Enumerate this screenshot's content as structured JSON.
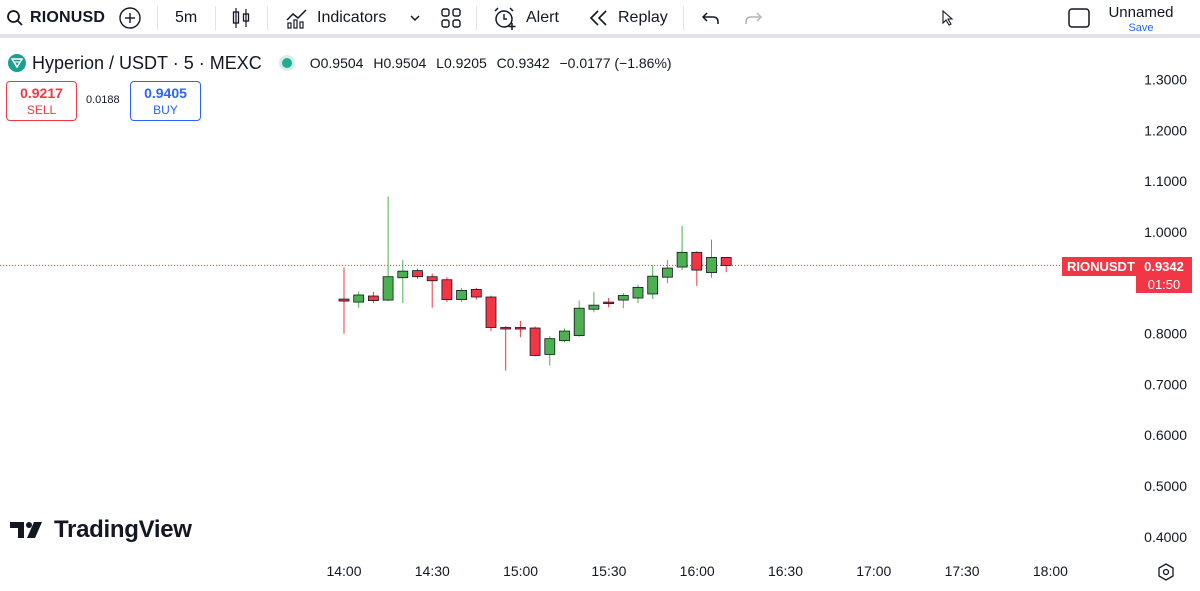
{
  "toolbar": {
    "symbol": "RIONUSD",
    "timeframe": "5m",
    "indicators_label": "Indicators",
    "alert_label": "Alert",
    "replay_label": "Replay",
    "layout_name": "Unnamed",
    "save_label": "Save"
  },
  "legend": {
    "title": "Hyperion / USDT · 5 · MEXC",
    "open": "O0.9504",
    "high": "H0.9504",
    "low": "L0.9205",
    "close": "C0.9342",
    "change": "−0.0177 (−1.86%)"
  },
  "trade": {
    "sell_price": "0.9217",
    "sell_label": "SELL",
    "spread": "0.0188",
    "buy_price": "0.9405",
    "buy_label": "BUY"
  },
  "price_tag": {
    "symbol": "RIONUSDT",
    "price": "0.9342",
    "countdown": "01:50"
  },
  "branding": "TradingView",
  "colors": {
    "up": "#4caf50",
    "down": "#f23645",
    "accent": "#2962ff",
    "brand_logo": "#1aa093"
  },
  "chart_data": {
    "type": "candlestick",
    "y_ticks": [
      "1.3000",
      "1.2000",
      "1.1000",
      "1.0000",
      "0.8000",
      "0.7000",
      "0.6000",
      "0.5000",
      "0.4000"
    ],
    "x_ticks": [
      "14:00",
      "14:30",
      "15:00",
      "15:30",
      "16:00",
      "16:30",
      "17:00",
      "17:30",
      "18:00"
    ],
    "ylim": [
      0.38,
      1.36
    ],
    "current_price": 0.9342,
    "candles": [
      {
        "t": 0,
        "o": 0.868,
        "h": 0.93,
        "l": 0.8,
        "c": 0.864
      },
      {
        "t": 1,
        "o": 0.862,
        "h": 0.883,
        "l": 0.851,
        "c": 0.876
      },
      {
        "t": 2,
        "o": 0.874,
        "h": 0.882,
        "l": 0.86,
        "c": 0.865
      },
      {
        "t": 3,
        "o": 0.866,
        "h": 1.07,
        "l": 0.864,
        "c": 0.912
      },
      {
        "t": 4,
        "o": 0.91,
        "h": 0.945,
        "l": 0.86,
        "c": 0.923
      },
      {
        "t": 5,
        "o": 0.924,
        "h": 0.928,
        "l": 0.908,
        "c": 0.912
      },
      {
        "t": 6,
        "o": 0.912,
        "h": 0.918,
        "l": 0.851,
        "c": 0.904
      },
      {
        "t": 7,
        "o": 0.906,
        "h": 0.911,
        "l": 0.862,
        "c": 0.867
      },
      {
        "t": 8,
        "o": 0.867,
        "h": 0.89,
        "l": 0.862,
        "c": 0.885
      },
      {
        "t": 9,
        "o": 0.887,
        "h": 0.89,
        "l": 0.867,
        "c": 0.872
      },
      {
        "t": 10,
        "o": 0.872,
        "h": 0.875,
        "l": 0.805,
        "c": 0.812
      },
      {
        "t": 11,
        "o": 0.812,
        "h": 0.815,
        "l": 0.727,
        "c": 0.811
      },
      {
        "t": 12,
        "o": 0.812,
        "h": 0.825,
        "l": 0.793,
        "c": 0.809
      },
      {
        "t": 13,
        "o": 0.811,
        "h": 0.814,
        "l": 0.755,
        "c": 0.757
      },
      {
        "t": 14,
        "o": 0.759,
        "h": 0.795,
        "l": 0.737,
        "c": 0.79
      },
      {
        "t": 15,
        "o": 0.786,
        "h": 0.81,
        "l": 0.783,
        "c": 0.805
      },
      {
        "t": 16,
        "o": 0.796,
        "h": 0.865,
        "l": 0.794,
        "c": 0.85
      },
      {
        "t": 17,
        "o": 0.848,
        "h": 0.882,
        "l": 0.842,
        "c": 0.856
      },
      {
        "t": 18,
        "o": 0.862,
        "h": 0.87,
        "l": 0.852,
        "c": 0.859
      },
      {
        "t": 19,
        "o": 0.866,
        "h": 0.88,
        "l": 0.85,
        "c": 0.875
      },
      {
        "t": 20,
        "o": 0.87,
        "h": 0.896,
        "l": 0.86,
        "c": 0.891
      },
      {
        "t": 21,
        "o": 0.878,
        "h": 0.935,
        "l": 0.868,
        "c": 0.913
      },
      {
        "t": 22,
        "o": 0.911,
        "h": 0.945,
        "l": 0.899,
        "c": 0.929
      },
      {
        "t": 23,
        "o": 0.931,
        "h": 1.012,
        "l": 0.925,
        "c": 0.96
      },
      {
        "t": 24,
        "o": 0.96,
        "h": 0.962,
        "l": 0.894,
        "c": 0.925
      },
      {
        "t": 25,
        "o": 0.92,
        "h": 0.985,
        "l": 0.91,
        "c": 0.95
      },
      {
        "t": 26,
        "o": 0.95,
        "h": 0.951,
        "l": 0.921,
        "c": 0.934
      }
    ]
  }
}
